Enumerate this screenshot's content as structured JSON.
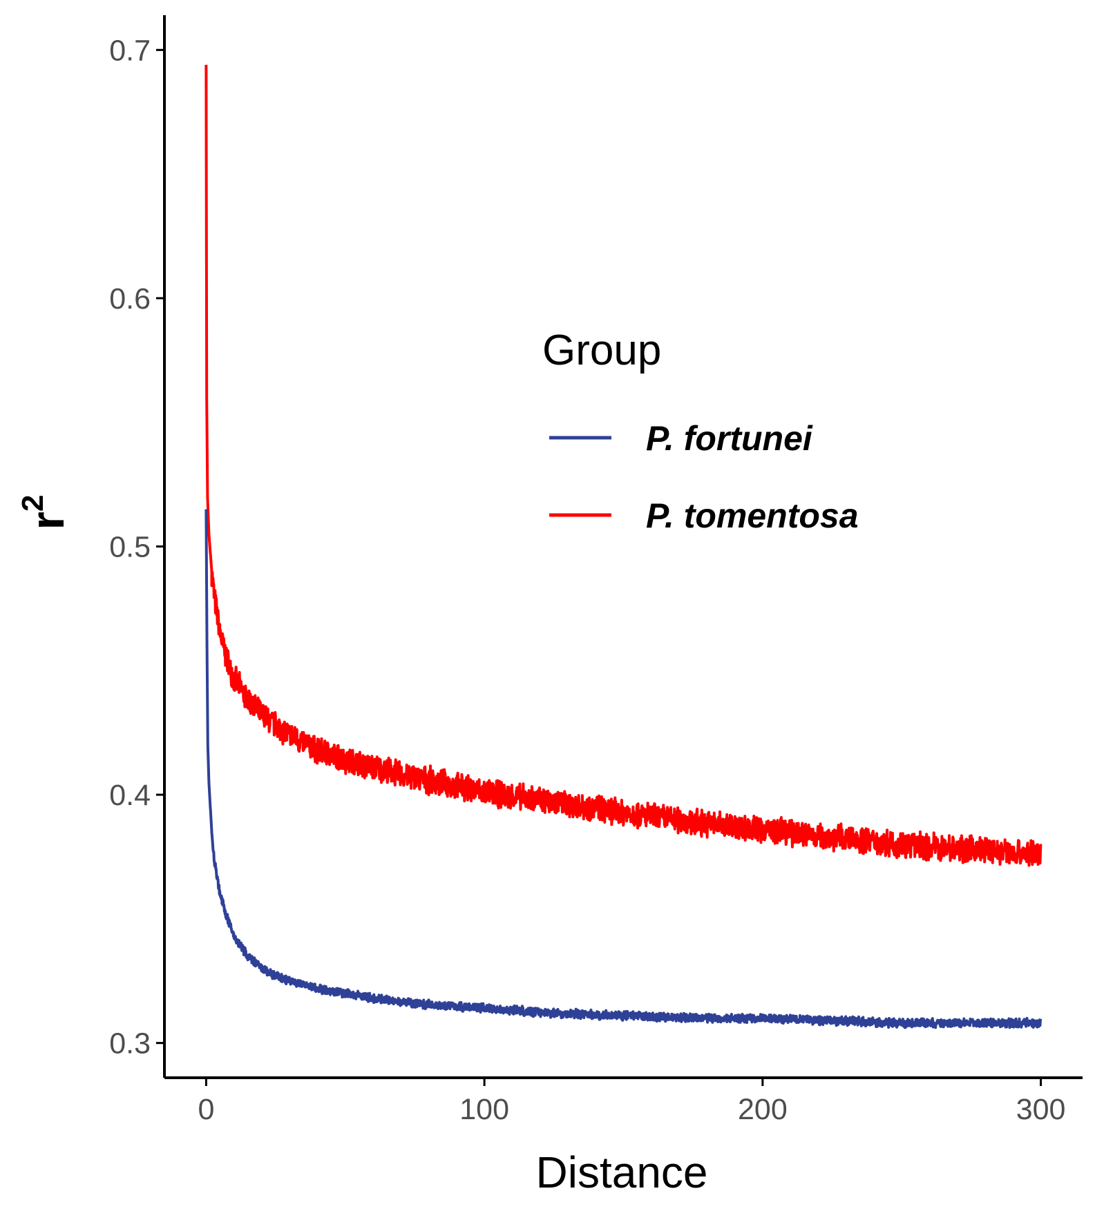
{
  "chart_data": {
    "type": "line",
    "title": "",
    "xlabel": "Distance",
    "ylabel_base": "r",
    "ylabel_sup": "2",
    "xlim": [
      -15,
      315
    ],
    "ylim": [
      0.286,
      0.714
    ],
    "x_ticks": [
      0,
      100,
      200,
      300
    ],
    "x_tick_labels": [
      "0",
      "100",
      "200",
      "300"
    ],
    "y_ticks": [
      0.3,
      0.4,
      0.5,
      0.6,
      0.7
    ],
    "y_tick_labels": [
      "0.3",
      "0.4",
      "0.5",
      "0.6",
      "0.7"
    ],
    "grid": false,
    "legend": {
      "title": "Group",
      "position": "upper-right",
      "entries": [
        {
          "label": "P. fortunei",
          "color": "#2e4197"
        },
        {
          "label": "P. tomentosa",
          "color": "#ff0000"
        }
      ]
    },
    "series": [
      {
        "name": "P. fortunei",
        "color": "#2e4197",
        "band_width": 0.004,
        "x": [
          0,
          0.3,
          0.6,
          1,
          2,
          3,
          5,
          7,
          10,
          15,
          20,
          25,
          30,
          40,
          50,
          60,
          75,
          100,
          125,
          150,
          175,
          200,
          225,
          250,
          275,
          300
        ],
        "y": [
          0.515,
          0.46,
          0.42,
          0.405,
          0.385,
          0.373,
          0.36,
          0.352,
          0.343,
          0.335,
          0.33,
          0.327,
          0.325,
          0.322,
          0.32,
          0.318,
          0.316,
          0.314,
          0.312,
          0.311,
          0.31,
          0.31,
          0.309,
          0.308,
          0.308,
          0.308
        ]
      },
      {
        "name": "P. tomentosa",
        "color": "#ff0000",
        "band_width": 0.012,
        "x": [
          0,
          0.2,
          0.5,
          1,
          2,
          3,
          5,
          7,
          10,
          15,
          20,
          25,
          30,
          40,
          50,
          60,
          75,
          100,
          125,
          150,
          175,
          200,
          225,
          250,
          275,
          300
        ],
        "y": [
          0.694,
          0.56,
          0.52,
          0.505,
          0.49,
          0.479,
          0.465,
          0.456,
          0.447,
          0.438,
          0.432,
          0.428,
          0.424,
          0.418,
          0.414,
          0.411,
          0.407,
          0.401,
          0.397,
          0.393,
          0.389,
          0.386,
          0.383,
          0.38,
          0.378,
          0.376
        ]
      }
    ]
  }
}
